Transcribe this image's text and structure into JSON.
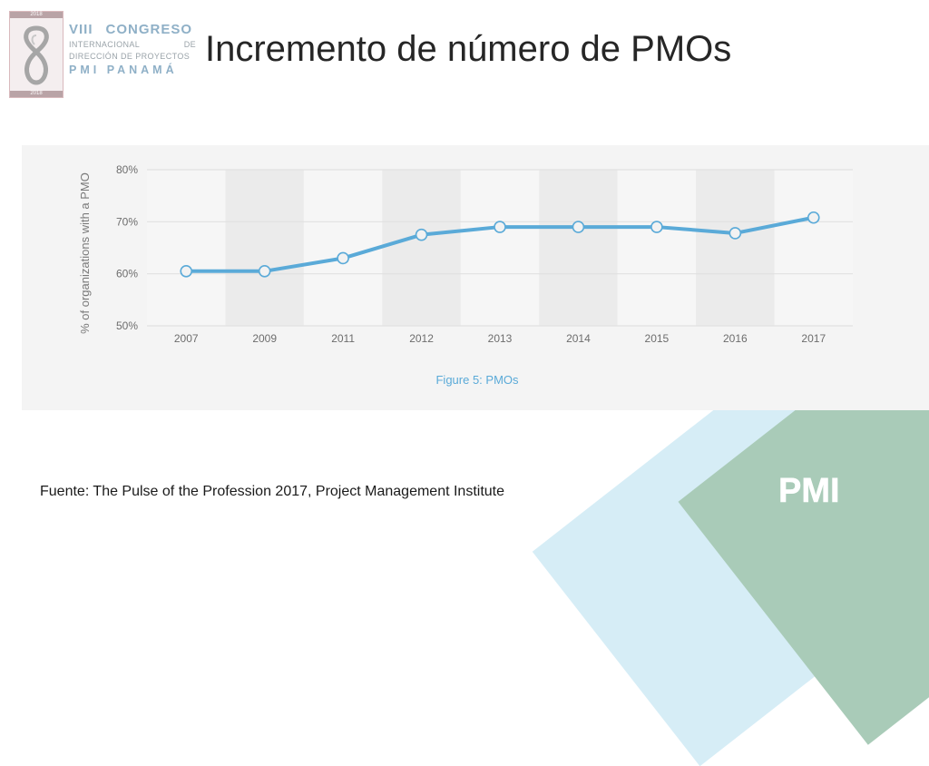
{
  "logo": {
    "year_top": "2018",
    "year_bottom": "2018",
    "line1_a": "VIII",
    "line1_b": "CONGRESO",
    "line2_a": "INTERNACIONAL",
    "line2_b": "DE",
    "line3": "DIRECCIÓN DE PROYECTOS",
    "line4": "PMI PANAMÁ"
  },
  "slide": {
    "title": "Incremento de número de PMOs",
    "source": "Fuente: The Pulse of the Profession 2017, Project Management Institute",
    "pmi_mark": "PMI"
  },
  "colors": {
    "line": "#5aaad8",
    "grid": "#e1e1e1",
    "tick_text": "#6d6d6d",
    "caption": "#5aaad8"
  },
  "chart_data": {
    "type": "line",
    "title": "",
    "caption": "Figure 5: PMOs",
    "xlabel": "",
    "ylabel": "% of organizations with a PMO",
    "categories": [
      "2007",
      "2009",
      "2011",
      "2012",
      "2013",
      "2014",
      "2015",
      "2016",
      "2017"
    ],
    "series": [
      {
        "values": [
          60.5,
          60.5,
          63,
          67.5,
          69,
          69,
          69,
          67.8,
          70.8
        ]
      }
    ],
    "ylim": [
      50,
      80
    ],
    "yticks": [
      50,
      60,
      70,
      80
    ],
    "ytick_labels": [
      "50%",
      "60%",
      "70%",
      "80%"
    ],
    "grid": true,
    "legend": "none"
  }
}
